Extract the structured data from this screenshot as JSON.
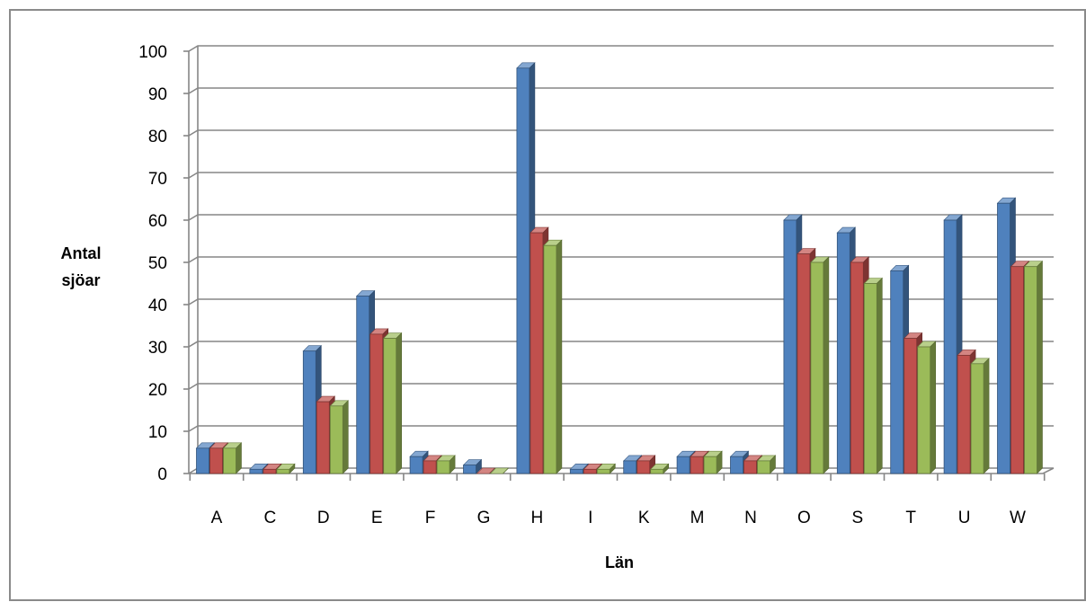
{
  "chart_data": {
    "type": "bar",
    "style": "3d-clustered-column",
    "categories": [
      "A",
      "C",
      "D",
      "E",
      "F",
      "G",
      "H",
      "I",
      "K",
      "M",
      "N",
      "O",
      "S",
      "T",
      "U",
      "W"
    ],
    "series": [
      {
        "color": "#4F81BD",
        "values": [
          6,
          1,
          29,
          42,
          4,
          2,
          96,
          1,
          3,
          4,
          4,
          60,
          57,
          48,
          60,
          64
        ]
      },
      {
        "color": "#C0504D",
        "values": [
          6,
          1,
          17,
          33,
          3,
          0,
          57,
          1,
          3,
          4,
          3,
          52,
          50,
          32,
          28,
          49
        ]
      },
      {
        "color": "#9BBB59",
        "values": [
          6,
          1,
          16,
          32,
          3,
          0,
          54,
          1,
          1,
          4,
          3,
          50,
          45,
          30,
          26,
          49
        ]
      }
    ],
    "ylabel": "Antal sjöar",
    "ylabel_lines": [
      "Antal",
      "sjöar"
    ],
    "xlabel": "Län",
    "ylim": [
      0,
      100
    ],
    "yticks": [
      "0",
      "10",
      "20",
      "30",
      "40",
      "50",
      "60",
      "70",
      "80",
      "90",
      "100"
    ],
    "grid": true,
    "legend": "none"
  }
}
